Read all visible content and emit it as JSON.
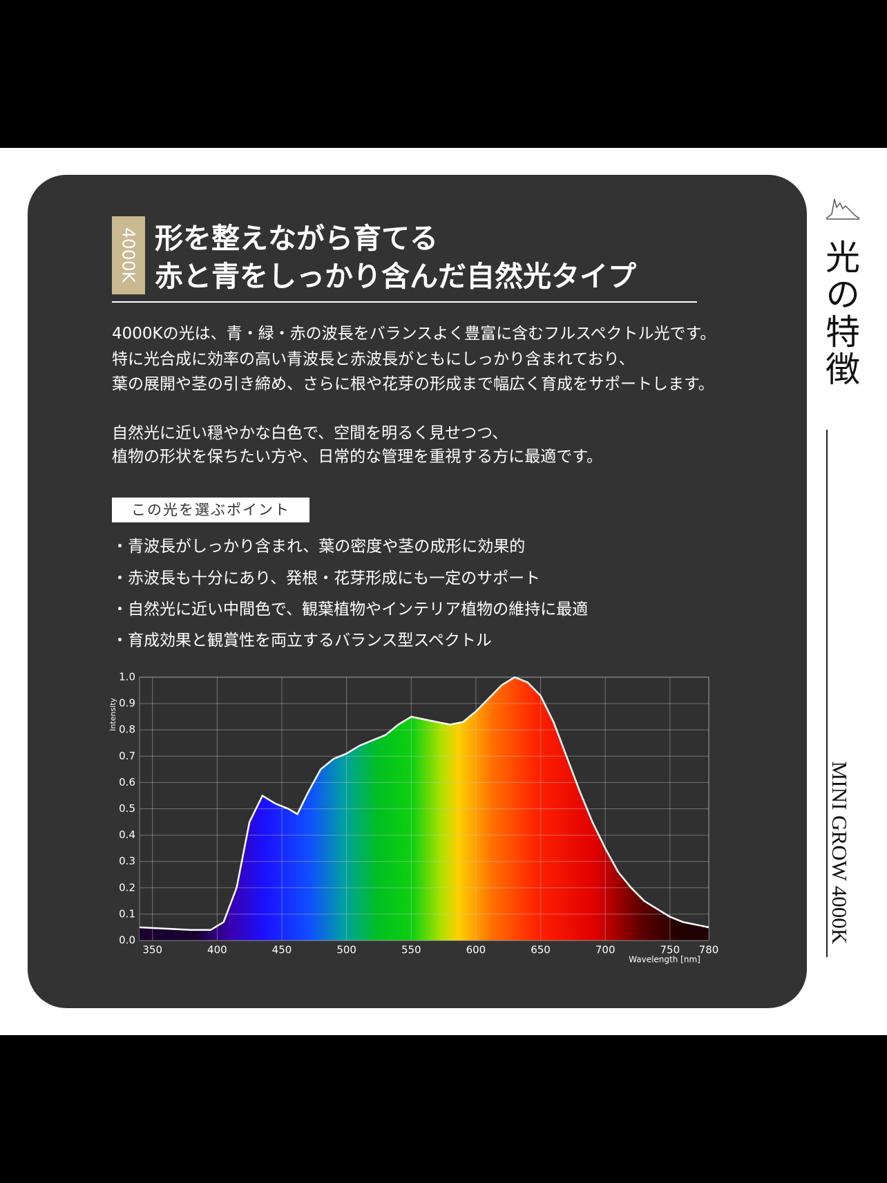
{
  "header": {
    "badge": "4000K",
    "title": [
      "形を整えながら育てる",
      "赤と青をしっかり含んだ自然光タイプ"
    ]
  },
  "paragraphs": [
    [
      "4000Kの光は、青・緑・赤の波長をバランスよく豊富に含むフルスペクトル光です。",
      "特に光合成に効率の高い青波長と赤波長がともにしっかり含まれており、",
      "葉の展開や茎の引き締め、さらに根や花芽の形成まで幅広く育成をサポートします。"
    ],
    [
      "自然光に近い穏やかな白色で、空間を明るく見せつつ、",
      "植物の形状を保ちたい方や、日常的な管理を重視する方に最適です。"
    ]
  ],
  "points": {
    "heading": "この光を選ぶポイント",
    "items": [
      "・青波長がしっかり含まれ、葉の密度や茎の成形に効果的",
      "・赤波長も十分にあり、発根・花芽形成にも一定のサポート",
      "・自然光に近い中間色で、観葉植物やインテリア植物の維持に最適",
      "・育成効果と観賞性を両立するバランス型スペクトル"
    ]
  },
  "side": {
    "label": "光の特徴",
    "product": "MINI GROW 4000K"
  },
  "chart_data": {
    "type": "area",
    "x_label": "Wavelength [nm]",
    "y_label": "Intensity",
    "color": "#ffffff",
    "grid": true,
    "x": [
      340,
      360,
      380,
      395,
      405,
      415,
      425,
      435,
      445,
      455,
      462,
      470,
      480,
      490,
      500,
      510,
      520,
      530,
      540,
      550,
      560,
      570,
      580,
      590,
      600,
      610,
      620,
      630,
      640,
      650,
      660,
      670,
      680,
      690,
      700,
      710,
      720,
      730,
      740,
      750,
      760,
      770,
      780
    ],
    "values": [
      0.05,
      0.045,
      0.04,
      0.04,
      0.07,
      0.2,
      0.45,
      0.55,
      0.52,
      0.5,
      0.48,
      0.56,
      0.65,
      0.69,
      0.71,
      0.74,
      0.76,
      0.78,
      0.82,
      0.85,
      0.84,
      0.83,
      0.82,
      0.83,
      0.87,
      0.92,
      0.97,
      1.0,
      0.98,
      0.93,
      0.83,
      0.7,
      0.57,
      0.45,
      0.35,
      0.26,
      0.2,
      0.15,
      0.12,
      0.09,
      0.07,
      0.06,
      0.05
    ],
    "xlim": [
      340,
      780
    ],
    "ylim": [
      0,
      1
    ],
    "xticks": [
      350,
      400,
      450,
      500,
      550,
      600,
      650,
      700,
      750,
      780
    ],
    "yticks": [
      {
        "value": 0,
        "label": "0.0"
      },
      0.1,
      0.2,
      0.3,
      0.4,
      0.5,
      0.6,
      0.7,
      0.8,
      0.9,
      {
        "value": 1,
        "label": "1.0"
      }
    ]
  }
}
